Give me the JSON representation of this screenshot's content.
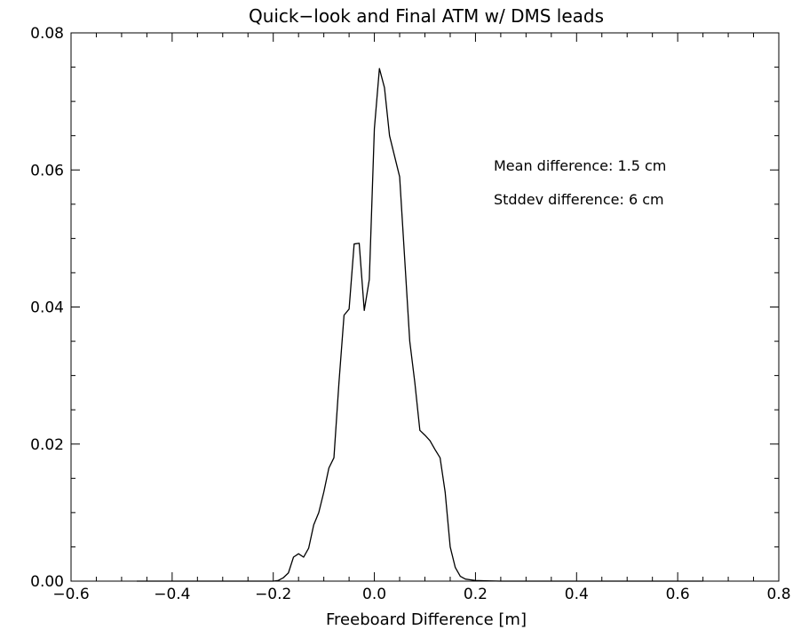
{
  "chart_data": {
    "type": "line",
    "title": "Quick−look and Final ATM w/ DMS leads",
    "xlabel": "Freeboard Difference [m]",
    "ylabel": "",
    "xlim": [
      -0.6,
      0.8
    ],
    "ylim": [
      0.0,
      0.08
    ],
    "xticks": [
      -0.6,
      -0.4,
      -0.2,
      0.0,
      0.2,
      0.4,
      0.6,
      0.8
    ],
    "xtick_labels": [
      "−0.6",
      "−0.4",
      "−0.2",
      "0.0",
      "0.2",
      "0.4",
      "0.6",
      "0.8"
    ],
    "yticks": [
      0.0,
      0.02,
      0.04,
      0.06,
      0.08
    ],
    "ytick_labels": [
      "0.00",
      "0.02",
      "0.04",
      "0.06",
      "0.08"
    ],
    "grid": false,
    "annotations": [
      "Mean difference: 1.5 cm",
      "Stddev difference: 6 cm"
    ],
    "series": [
      {
        "x": [
          -0.47,
          -0.4,
          -0.3,
          -0.2,
          -0.19,
          -0.18,
          -0.17,
          -0.16,
          -0.15,
          -0.14,
          -0.13,
          -0.12,
          -0.11,
          -0.1,
          -0.09,
          -0.08,
          -0.07,
          -0.06,
          -0.05,
          -0.04,
          -0.03,
          -0.02,
          -0.01,
          0.0,
          0.01,
          0.02,
          0.03,
          0.04,
          0.05,
          0.06,
          0.07,
          0.08,
          0.09,
          0.1,
          0.11,
          0.12,
          0.13,
          0.14,
          0.15,
          0.16,
          0.17,
          0.18,
          0.19,
          0.2,
          0.22,
          0.25,
          0.3,
          0.4,
          0.5,
          0.65
        ],
        "y": [
          0.0,
          0.0,
          0.0,
          0.0,
          0.0001,
          0.0005,
          0.0012,
          0.0035,
          0.004,
          0.0035,
          0.0048,
          0.0082,
          0.01,
          0.013,
          0.0165,
          0.018,
          0.029,
          0.0388,
          0.0397,
          0.0492,
          0.0493,
          0.0395,
          0.044,
          0.066,
          0.0748,
          0.072,
          0.065,
          0.062,
          0.059,
          0.047,
          0.035,
          0.029,
          0.022,
          0.0213,
          0.0205,
          0.0192,
          0.018,
          0.013,
          0.005,
          0.002,
          0.0007,
          0.0003,
          0.0002,
          0.0001,
          5e-05,
          0.0,
          0.0,
          0.0,
          0.0,
          0.0
        ]
      }
    ]
  }
}
